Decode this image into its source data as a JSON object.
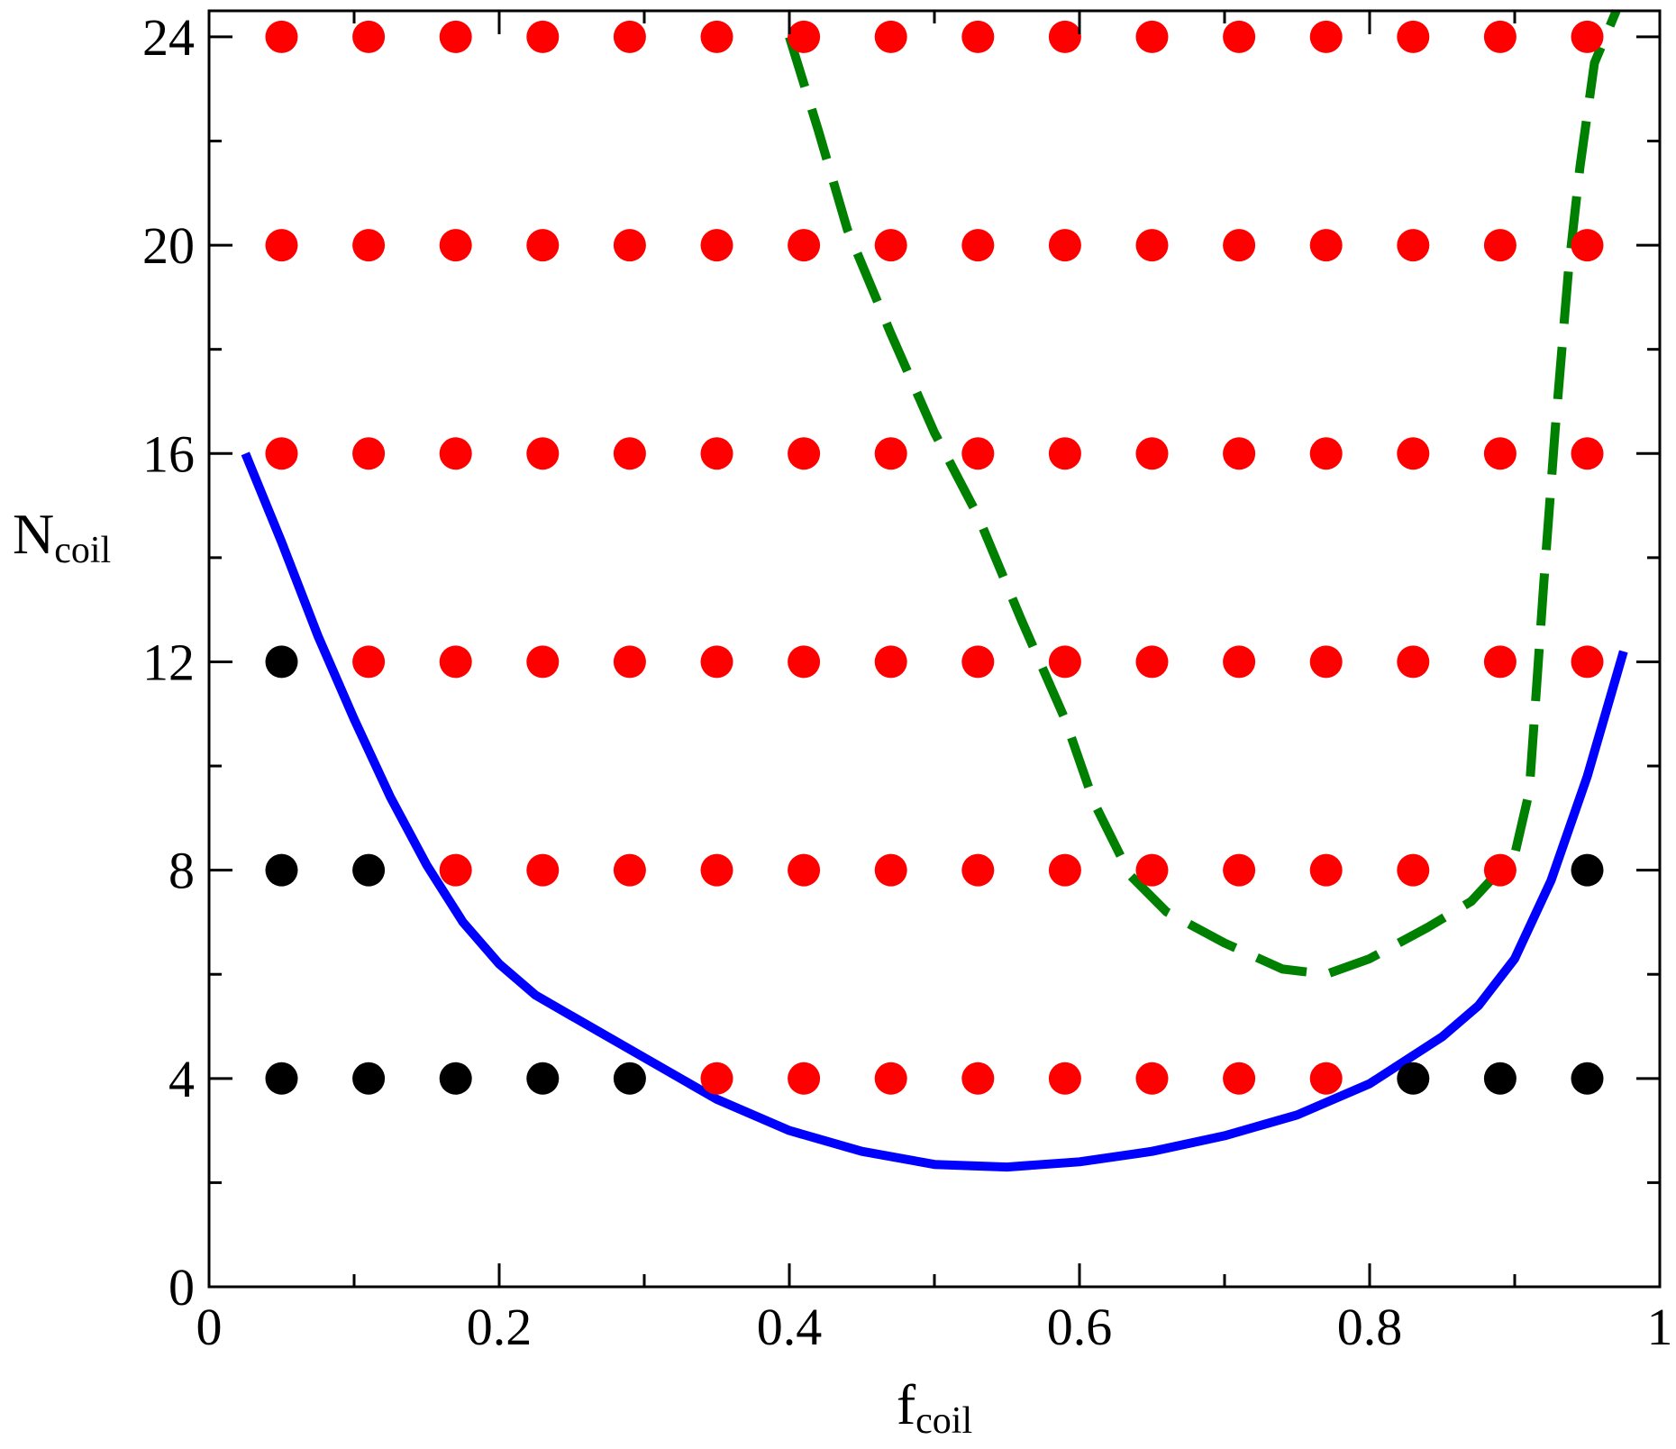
{
  "chart_data": {
    "type": "scatter",
    "title": "",
    "xlabel": {
      "main": "f",
      "sub": "coil"
    },
    "ylabel": {
      "main": "N",
      "sub": "coil"
    },
    "xlim": [
      0,
      1
    ],
    "ylim": [
      0,
      24.5
    ],
    "xticks": [
      0,
      0.2,
      0.4,
      0.6,
      0.8,
      1
    ],
    "xtick_labels": [
      "0",
      "0.2",
      "0.4",
      "0.6",
      "0.8",
      "1"
    ],
    "xminor": [
      0.1,
      0.3,
      0.5,
      0.7,
      0.9
    ],
    "yticks": [
      0,
      4,
      8,
      12,
      16,
      20,
      24
    ],
    "ytick_labels": [
      "0",
      "4",
      "8",
      "12",
      "16",
      "20",
      "24"
    ],
    "yminor": [
      2,
      6,
      10,
      14,
      18,
      22
    ],
    "grid": false,
    "legend": null,
    "colors": {
      "red": "#ff0000",
      "black": "#000000",
      "blue": "#0000ff",
      "green": "#008000"
    },
    "x_grid_values": [
      0.05,
      0.11,
      0.17,
      0.23,
      0.29,
      0.35,
      0.41,
      0.47,
      0.53,
      0.59,
      0.65,
      0.71,
      0.77,
      0.83,
      0.89,
      0.95
    ],
    "point_series": [
      {
        "color": "black",
        "points": [
          [
            0.05,
            4
          ],
          [
            0.11,
            4
          ],
          [
            0.17,
            4
          ],
          [
            0.23,
            4
          ],
          [
            0.29,
            4
          ],
          [
            0.83,
            4
          ],
          [
            0.89,
            4
          ],
          [
            0.95,
            4
          ],
          [
            0.05,
            8
          ],
          [
            0.11,
            8
          ],
          [
            0.95,
            8
          ],
          [
            0.05,
            12
          ]
        ]
      },
      {
        "color": "red",
        "points": [
          [
            0.35,
            4
          ],
          [
            0.41,
            4
          ],
          [
            0.47,
            4
          ],
          [
            0.53,
            4
          ],
          [
            0.59,
            4
          ],
          [
            0.65,
            4
          ],
          [
            0.71,
            4
          ],
          [
            0.77,
            4
          ],
          [
            0.17,
            8
          ],
          [
            0.23,
            8
          ],
          [
            0.29,
            8
          ],
          [
            0.35,
            8
          ],
          [
            0.41,
            8
          ],
          [
            0.47,
            8
          ],
          [
            0.53,
            8
          ],
          [
            0.59,
            8
          ],
          [
            0.65,
            8
          ],
          [
            0.71,
            8
          ],
          [
            0.77,
            8
          ],
          [
            0.83,
            8
          ],
          [
            0.89,
            8
          ],
          [
            0.11,
            12
          ],
          [
            0.17,
            12
          ],
          [
            0.23,
            12
          ],
          [
            0.29,
            12
          ],
          [
            0.35,
            12
          ],
          [
            0.41,
            12
          ],
          [
            0.47,
            12
          ],
          [
            0.53,
            12
          ],
          [
            0.59,
            12
          ],
          [
            0.65,
            12
          ],
          [
            0.71,
            12
          ],
          [
            0.77,
            12
          ],
          [
            0.83,
            12
          ],
          [
            0.89,
            12
          ],
          [
            0.95,
            12
          ],
          [
            0.05,
            16
          ],
          [
            0.11,
            16
          ],
          [
            0.17,
            16
          ],
          [
            0.23,
            16
          ],
          [
            0.29,
            16
          ],
          [
            0.35,
            16
          ],
          [
            0.41,
            16
          ],
          [
            0.47,
            16
          ],
          [
            0.53,
            16
          ],
          [
            0.59,
            16
          ],
          [
            0.65,
            16
          ],
          [
            0.71,
            16
          ],
          [
            0.77,
            16
          ],
          [
            0.83,
            16
          ],
          [
            0.89,
            16
          ],
          [
            0.95,
            16
          ],
          [
            0.05,
            20
          ],
          [
            0.11,
            20
          ],
          [
            0.17,
            20
          ],
          [
            0.23,
            20
          ],
          [
            0.29,
            20
          ],
          [
            0.35,
            20
          ],
          [
            0.41,
            20
          ],
          [
            0.47,
            20
          ],
          [
            0.53,
            20
          ],
          [
            0.59,
            20
          ],
          [
            0.65,
            20
          ],
          [
            0.71,
            20
          ],
          [
            0.77,
            20
          ],
          [
            0.83,
            20
          ],
          [
            0.89,
            20
          ],
          [
            0.95,
            20
          ],
          [
            0.05,
            24
          ],
          [
            0.11,
            24
          ],
          [
            0.17,
            24
          ],
          [
            0.23,
            24
          ],
          [
            0.29,
            24
          ],
          [
            0.35,
            24
          ],
          [
            0.41,
            24
          ],
          [
            0.47,
            24
          ],
          [
            0.53,
            24
          ],
          [
            0.59,
            24
          ],
          [
            0.65,
            24
          ],
          [
            0.71,
            24
          ],
          [
            0.77,
            24
          ],
          [
            0.83,
            24
          ],
          [
            0.89,
            24
          ],
          [
            0.95,
            24
          ]
        ]
      }
    ],
    "line_series": [
      {
        "color": "blue",
        "style": "solid",
        "points": [
          [
            0.025,
            16
          ],
          [
            0.05,
            14.3
          ],
          [
            0.075,
            12.5
          ],
          [
            0.1,
            10.9
          ],
          [
            0.125,
            9.4
          ],
          [
            0.15,
            8.1
          ],
          [
            0.175,
            7.0
          ],
          [
            0.2,
            6.2
          ],
          [
            0.225,
            5.6
          ],
          [
            0.25,
            5.2
          ],
          [
            0.3,
            4.4
          ],
          [
            0.35,
            3.6
          ],
          [
            0.4,
            3.0
          ],
          [
            0.45,
            2.6
          ],
          [
            0.5,
            2.35
          ],
          [
            0.55,
            2.3
          ],
          [
            0.6,
            2.4
          ],
          [
            0.65,
            2.6
          ],
          [
            0.7,
            2.9
          ],
          [
            0.75,
            3.3
          ],
          [
            0.8,
            3.9
          ],
          [
            0.85,
            4.8
          ],
          [
            0.875,
            5.4
          ],
          [
            0.9,
            6.3
          ],
          [
            0.925,
            7.8
          ],
          [
            0.95,
            9.8
          ],
          [
            0.975,
            12.2
          ]
        ]
      },
      {
        "color": "green",
        "style": "dashed",
        "points": [
          [
            0.4,
            24
          ],
          [
            0.42,
            22.2
          ],
          [
            0.44,
            20.3
          ],
          [
            0.47,
            18.3
          ],
          [
            0.5,
            16.4
          ],
          [
            0.53,
            14.8
          ],
          [
            0.56,
            12.8
          ],
          [
            0.59,
            10.9
          ],
          [
            0.61,
            9.3
          ],
          [
            0.635,
            7.9
          ],
          [
            0.66,
            7.2
          ],
          [
            0.7,
            6.6
          ],
          [
            0.74,
            6.1
          ],
          [
            0.77,
            6.0
          ],
          [
            0.8,
            6.3
          ],
          [
            0.84,
            6.9
          ],
          [
            0.87,
            7.4
          ],
          [
            0.9,
            8.3
          ],
          [
            0.91,
            9.5
          ],
          [
            0.915,
            11.5
          ],
          [
            0.92,
            13.5
          ],
          [
            0.928,
            16.5
          ],
          [
            0.937,
            19.5
          ],
          [
            0.945,
            21.5
          ],
          [
            0.955,
            23.5
          ],
          [
            0.97,
            24.5
          ]
        ]
      }
    ]
  }
}
